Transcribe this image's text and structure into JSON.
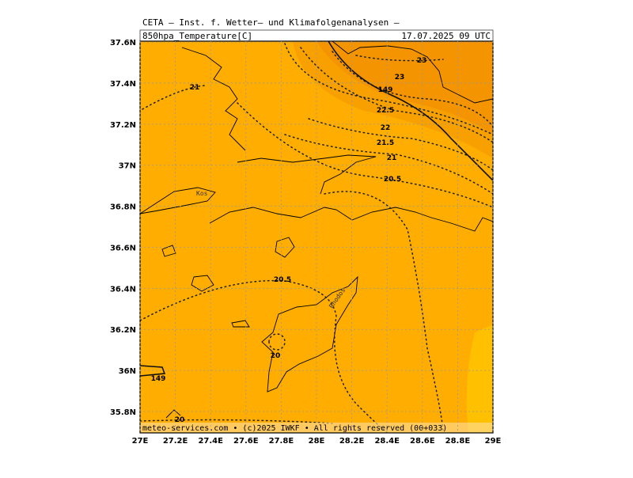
{
  "header": {
    "institute": "CETA – Inst. f. Wetter– und Klimafolgenanalysen –",
    "title": "850hpa_Temperature[C]",
    "date": "17.07.2025  09 UTC"
  },
  "axes": {
    "lat_ticks": [
      {
        "value": 35.8,
        "label": "35.8N"
      },
      {
        "value": 36,
        "label": "36N"
      },
      {
        "value": 36.2,
        "label": "36.2N"
      },
      {
        "value": 36.4,
        "label": "36.4N"
      },
      {
        "value": 36.6,
        "label": "36.6N"
      },
      {
        "value": 36.8,
        "label": "36.8N"
      },
      {
        "value": 37,
        "label": "37N"
      },
      {
        "value": 37.2,
        "label": "37.2N"
      },
      {
        "value": 37.4,
        "label": "37.4N"
      },
      {
        "value": 37.6,
        "label": "37.6N"
      }
    ],
    "lon_ticks": [
      {
        "value": 27,
        "label": "27E"
      },
      {
        "value": 27.2,
        "label": "27.2E"
      },
      {
        "value": 27.4,
        "label": "27.4E"
      },
      {
        "value": 27.6,
        "label": "27.6E"
      },
      {
        "value": 27.8,
        "label": "27.8E"
      },
      {
        "value": 28,
        "label": "28E"
      },
      {
        "value": 28.2,
        "label": "28.2E"
      },
      {
        "value": 28.4,
        "label": "28.4E"
      },
      {
        "value": 28.6,
        "label": "28.6E"
      },
      {
        "value": 28.8,
        "label": "28.8E"
      },
      {
        "value": 29,
        "label": "29E"
      }
    ]
  },
  "contour_labels": [
    21,
    23,
    23,
    149,
    22.5,
    22,
    21.5,
    21,
    20.5,
    20.5,
    20,
    149,
    20
  ],
  "places": [
    "Kos",
    "Rhodos"
  ],
  "footer": "meteo-services.com • (c)2025 IWKF • All rights reserved (00+033)"
}
